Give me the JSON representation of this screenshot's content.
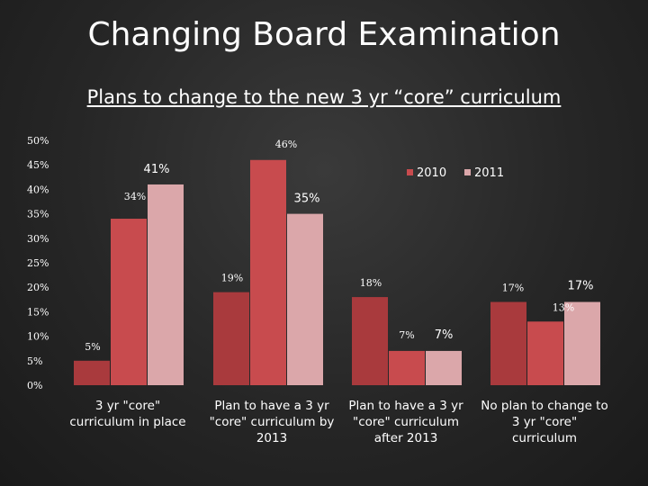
{
  "slide": {
    "title": "Changing Board Examination"
  },
  "chart_data": {
    "type": "bar",
    "title": "Plans to change to the new 3 yr “core” curriculum",
    "categories": [
      [
        "3 yr \"core\"",
        "curriculum in place"
      ],
      [
        "Plan to have a 3 yr",
        "\"core\" curriculum by",
        "2013"
      ],
      [
        "Plan to have a 3 yr",
        "\"core\" curriculum",
        "after 2013"
      ],
      [
        "No plan to change to",
        "3 yr \"core\"",
        "curriculum"
      ]
    ],
    "series": [
      {
        "name": "",
        "color": "#a93a3d",
        "values": [
          5,
          19,
          18,
          17
        ],
        "labels": [
          "5%",
          "19%",
          "18%",
          "17%"
        ]
      },
      {
        "name": "2010",
        "color": "#c84b4e",
        "values": [
          34,
          46,
          7,
          13
        ],
        "labels": [
          "34%",
          "46%",
          "7%",
          "13%"
        ]
      },
      {
        "name": "2011",
        "color": "#dba7aa",
        "values": [
          41,
          35,
          7,
          17
        ],
        "labels": [
          "41%",
          "35%",
          "7%",
          "17%"
        ]
      }
    ],
    "y_ticks": [
      "0%",
      "5%",
      "10%",
      "15%",
      "20%",
      "25%",
      "30%",
      "35%",
      "40%",
      "45%",
      "50%"
    ],
    "ylim": [
      0,
      50
    ],
    "legend_position": "top-right",
    "grid": false
  }
}
